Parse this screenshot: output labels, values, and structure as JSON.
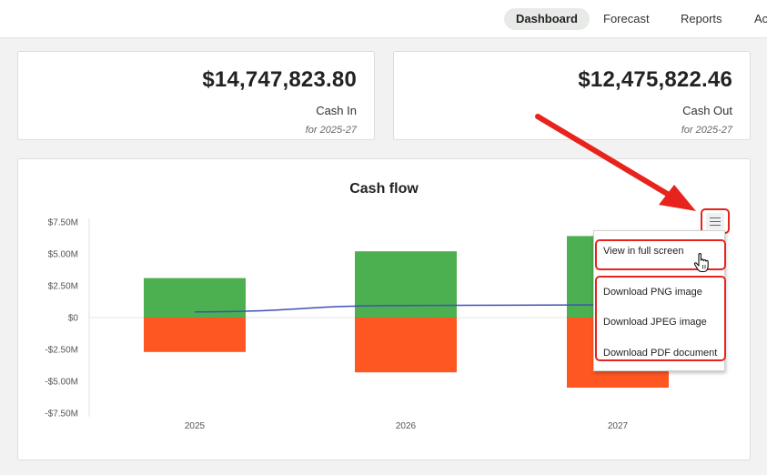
{
  "nav": {
    "items": [
      {
        "label": "Dashboard",
        "active": true
      },
      {
        "label": "Forecast",
        "active": false
      },
      {
        "label": "Reports",
        "active": false
      },
      {
        "label": "Ac",
        "active": false
      }
    ]
  },
  "cards": {
    "cash_in": {
      "amount": "$14,747,823.80",
      "label": "Cash In",
      "period": "for 2025-27"
    },
    "cash_out": {
      "amount": "$12,475,822.46",
      "label": "Cash Out",
      "period": "for 2025-27"
    }
  },
  "menu": {
    "items": [
      "View in full screen",
      "Download PNG image",
      "Download JPEG image",
      "Download PDF document"
    ]
  },
  "icons": {
    "menu": "hamburger-icon",
    "cursor": "hand-pointer-icon",
    "annotation": "red-arrow-icon"
  },
  "colors": {
    "cash_in": "#4caf50",
    "cash_out": "#ff5722",
    "line": "#3f51b5",
    "highlight": "#e8231d"
  },
  "chart_data": {
    "type": "bar",
    "title": "Cash flow",
    "categories": [
      "2025",
      "2026",
      "2027"
    ],
    "series": [
      {
        "values": [
          3.1,
          5.2,
          6.4
        ]
      },
      {
        "values": [
          -2.7,
          -4.3,
          -5.5
        ]
      },
      {
        "type": "line",
        "values": [
          0.45,
          0.95,
          1.0
        ]
      }
    ],
    "yticks": [
      "$7.50M",
      "$5.00M",
      "$2.50M",
      "$0",
      "-$2.50M",
      "-$5.00M",
      "-$7.50M"
    ],
    "ylim": [
      -7.5,
      7.5
    ],
    "grid": false,
    "legend": "none"
  }
}
